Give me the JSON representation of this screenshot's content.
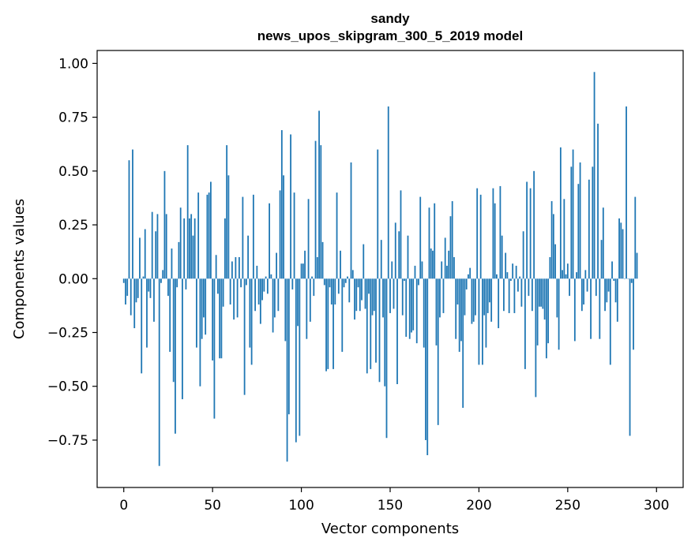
{
  "chart_data": {
    "type": "bar",
    "title": "sandy",
    "subtitle": "news_upos_skipgram_300_5_2019 model",
    "xlabel": "Vector components",
    "ylabel": "Components values",
    "xlim": [
      -15,
      315
    ],
    "ylim": [
      -0.97,
      1.06
    ],
    "bar_color": "#1f77b4",
    "x_ticks": [
      {
        "value": 0,
        "label": "0"
      },
      {
        "value": 50,
        "label": "50"
      },
      {
        "value": 100,
        "label": "100"
      },
      {
        "value": 150,
        "label": "150"
      },
      {
        "value": 200,
        "label": "200"
      },
      {
        "value": 250,
        "label": "250"
      },
      {
        "value": 300,
        "label": "300"
      }
    ],
    "y_ticks": [
      {
        "value": -0.75,
        "label": "−0.75"
      },
      {
        "value": -0.5,
        "label": "−0.50"
      },
      {
        "value": -0.25,
        "label": "−0.25"
      },
      {
        "value": 0,
        "label": "0.00"
      },
      {
        "value": 0.25,
        "label": "0.25"
      },
      {
        "value": 0.5,
        "label": "0.50"
      },
      {
        "value": 0.75,
        "label": "0.75"
      },
      {
        "value": 1.0,
        "label": "1.00"
      }
    ],
    "values": [
      -0.02,
      -0.12,
      -0.08,
      0.55,
      -0.17,
      0.6,
      -0.23,
      -0.11,
      -0.09,
      0.19,
      -0.44,
      0.01,
      0.23,
      -0.32,
      -0.06,
      -0.09,
      0.31,
      -0.2,
      0.22,
      0.3,
      -0.87,
      -0.02,
      0.04,
      0.5,
      0.3,
      -0.08,
      -0.34,
      0.14,
      -0.48,
      -0.72,
      -0.04,
      0.17,
      0.33,
      -0.56,
      0.28,
      -0.05,
      0.62,
      0.28,
      0.3,
      0.2,
      0.28,
      -0.32,
      0.4,
      -0.5,
      -0.28,
      -0.18,
      -0.26,
      0.39,
      0.4,
      0.45,
      -0.38,
      -0.65,
      0.11,
      -0.07,
      -0.37,
      -0.37,
      -0.13,
      0.28,
      0.62,
      0.48,
      -0.12,
      0.08,
      -0.19,
      0.1,
      -0.18,
      0.1,
      -0.04,
      0.38,
      -0.54,
      -0.03,
      0.2,
      -0.32,
      -0.4,
      0.39,
      -0.15,
      0.06,
      -0.12,
      -0.21,
      -0.1,
      -0.06,
      0.01,
      -0.07,
      0.35,
      0.02,
      -0.25,
      -0.18,
      0.12,
      -0.15,
      0.41,
      0.69,
      0.48,
      -0.29,
      -0.85,
      -0.63,
      0.67,
      -0.05,
      0.4,
      -0.76,
      -0.22,
      -0.73,
      0.07,
      0.07,
      0.13,
      -0.28,
      0.37,
      -0.2,
      0.01,
      -0.08,
      0.64,
      0.1,
      0.78,
      0.62,
      0.17,
      -0.03,
      -0.43,
      -0.42,
      -0.04,
      -0.12,
      -0.42,
      -0.12,
      0.4,
      -0.07,
      0.13,
      -0.34,
      -0.04,
      -0.02,
      0.01,
      -0.11,
      0.54,
      0.04,
      -0.19,
      -0.15,
      -0.04,
      -0.15,
      -0.1,
      0.16,
      -0.14,
      -0.44,
      -0.07,
      -0.42,
      -0.17,
      -0.15,
      -0.39,
      0.6,
      -0.48,
      0.18,
      -0.18,
      -0.5,
      -0.74,
      0.8,
      -0.16,
      0.08,
      -0.14,
      0.26,
      -0.49,
      0.22,
      0.41,
      -0.17,
      -0.01,
      -0.27,
      0.2,
      -0.28,
      -0.25,
      -0.24,
      0.06,
      -0.3,
      -0.03,
      0.38,
      0.08,
      -0.32,
      -0.75,
      -0.82,
      0.33,
      0.14,
      0.13,
      0.35,
      -0.31,
      -0.68,
      -0.18,
      0.08,
      -0.16,
      0.19,
      0.06,
      0.13,
      0.29,
      0.36,
      0.1,
      -0.28,
      -0.12,
      -0.34,
      -0.29,
      -0.6,
      -0.17,
      -0.05,
      0.02,
      0.05,
      -0.21,
      -0.2,
      -0.17,
      0.42,
      -0.4,
      0.39,
      -0.4,
      -0.17,
      -0.32,
      -0.16,
      -0.11,
      -0.2,
      0.42,
      0.35,
      0.02,
      -0.23,
      0.43,
      0.2,
      -0.15,
      0.12,
      0.03,
      -0.16,
      -0.01,
      0.07,
      -0.16,
      0.06,
      -0.06,
      0.01,
      -0.13,
      0.22,
      -0.42,
      0.45,
      -0.08,
      0.42,
      -0.15,
      0.5,
      -0.55,
      -0.31,
      -0.13,
      -0.13,
      -0.14,
      -0.19,
      -0.37,
      -0.3,
      0.1,
      0.36,
      0.3,
      0.16,
      -0.18,
      -0.33,
      0.61,
      0.04,
      0.37,
      0.02,
      0.07,
      -0.08,
      0.52,
      0.6,
      -0.29,
      0.03,
      0.44,
      0.54,
      -0.15,
      -0.12,
      0.04,
      -0.06,
      0.46,
      -0.28,
      0.52,
      0.96,
      -0.08,
      0.72,
      -0.28,
      0.18,
      0.33,
      -0.15,
      -0.11,
      -0.06,
      -0.4,
      0.08,
      -0.01,
      -0.11,
      -0.2,
      0.28,
      0.26,
      0.23,
      0.0,
      0.8,
      0.0,
      -0.73,
      -0.02,
      -0.33,
      0.38,
      0.12
    ]
  }
}
